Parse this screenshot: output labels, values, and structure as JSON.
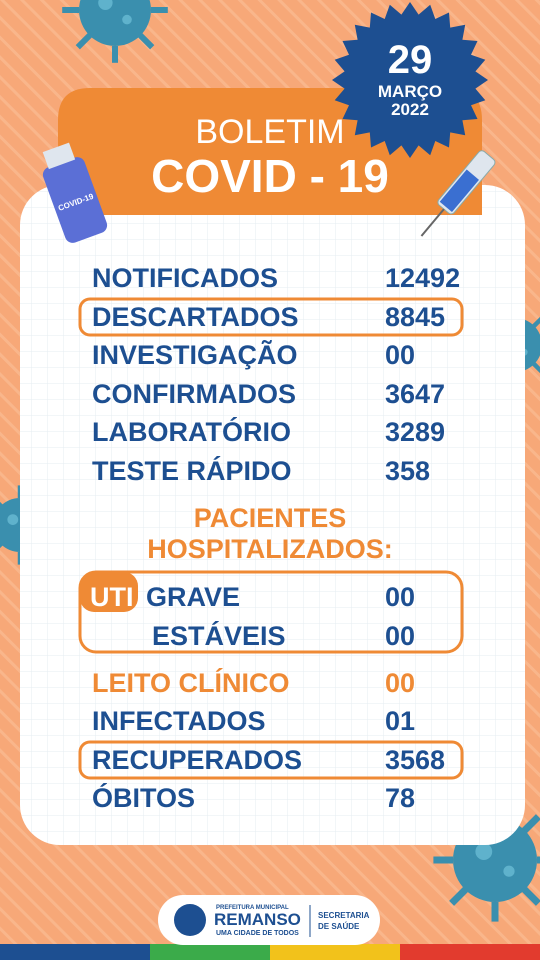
{
  "header": {
    "title_line1": "BOLETIM",
    "title_line2": "COVID - 19",
    "vial_label": "COVID-19"
  },
  "date": {
    "day": "29",
    "month": "MARÇO",
    "year": "2022"
  },
  "stats": [
    {
      "label": "NOTIFICADOS",
      "value": "12492"
    },
    {
      "label": "DESCARTADOS",
      "value": "8845"
    },
    {
      "label": "INVESTIGAÇÃO",
      "value": "00"
    },
    {
      "label": "CONFIRMADOS",
      "value": "3647"
    },
    {
      "label": "LABORATÓRIO",
      "value": "3289"
    },
    {
      "label": "TESTE RÁPIDO",
      "value": "358"
    }
  ],
  "hospitalized": {
    "title_line1": "PACIENTES",
    "title_line2": "HOSPITALIZADOS:",
    "uti_label": "UTI",
    "rows": [
      {
        "label": "GRAVE",
        "value": "00"
      },
      {
        "label": "ESTÁVEIS",
        "value": "00"
      }
    ]
  },
  "stats2": [
    {
      "label": "LEITO CLÍNICO",
      "value": "00"
    },
    {
      "label": "INFECTADOS",
      "value": "01"
    },
    {
      "label": "RECUPERADOS",
      "value": "3568"
    },
    {
      "label": "ÓBITOS",
      "value": "78"
    }
  ],
  "footer": {
    "org_line1": "PREFEITURA MUNICIPAL",
    "org_name": "REMANSO",
    "org_slogan": "UMA CIDADE DE TODOS",
    "dept_line1": "SECRETARIA",
    "dept_line2": "DE SAÚDE"
  }
}
